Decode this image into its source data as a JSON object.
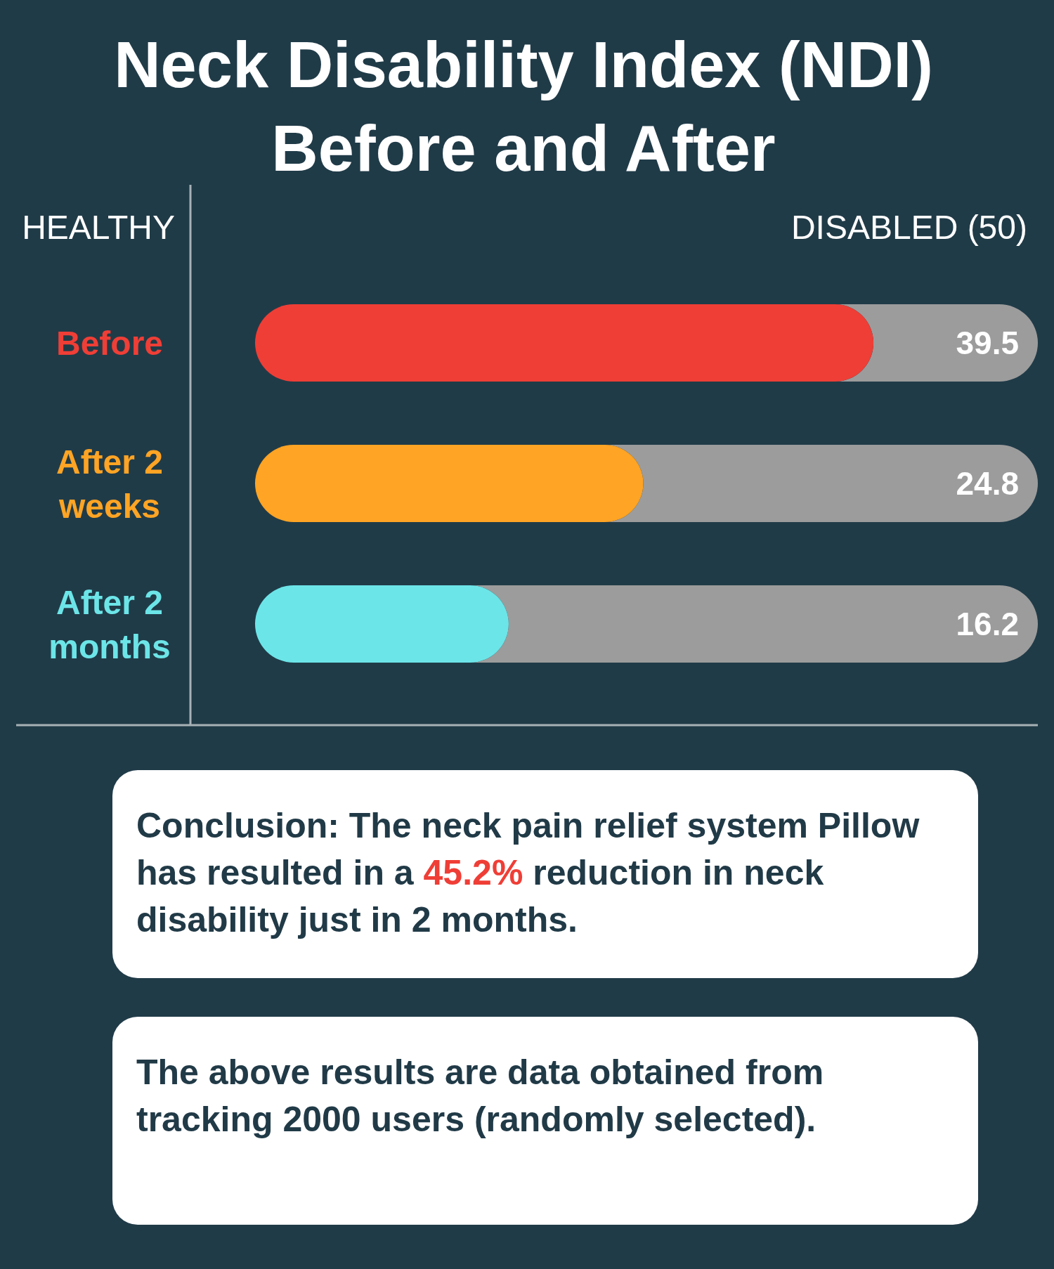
{
  "chart_data": {
    "type": "bar",
    "orientation": "horizontal",
    "title": "Neck Disability Index (NDI) Before and After",
    "categories": [
      "Before",
      "After 2 weeks",
      "After 2 months"
    ],
    "values": [
      39.5,
      24.8,
      16.2
    ],
    "colors": [
      "#ef3e36",
      "#ffa424",
      "#6ce5e8"
    ],
    "xlim": [
      0,
      50
    ],
    "data_labels": true,
    "annotations": [
      "HEALTHY",
      "DISABLED (50)",
      "Conclusion: The neck pain relief system Pillow has resulted in a 45.2% reduction in neck disability just in 2 months.",
      "The above results are data obtained from tracking 2000 users (randomly selected)."
    ]
  }
}
